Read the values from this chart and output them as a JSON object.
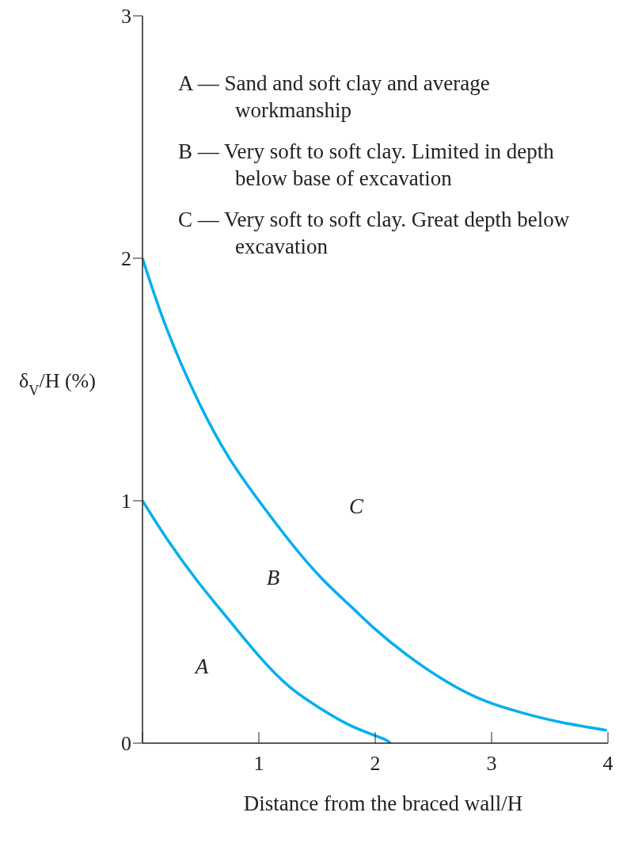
{
  "chart_data": {
    "type": "line",
    "xlabel": "Distance from the braced wall/H",
    "ylabel": "δ$_{V}$/H (%)",
    "xlim": [
      0,
      4
    ],
    "xticks": [
      {
        "value": 0,
        "label": null
      },
      1,
      2,
      3,
      4
    ],
    "ylim": [
      0,
      3
    ],
    "yticks": [
      0,
      1,
      2,
      3
    ],
    "grid": false,
    "marker": "none",
    "line_style": "solid",
    "series": [
      {
        "color": "#00aeef",
        "x": [
          0,
          0.2,
          0.47,
          0.74,
          1.0,
          1.27,
          1.54,
          1.8,
          2.06,
          2.13
        ],
        "values": [
          1.0,
          0.85,
          0.67,
          0.51,
          0.36,
          0.23,
          0.14,
          0.07,
          0.02,
          0
        ]
      },
      {
        "color": "#00aeef",
        "x": [
          0,
          0.2,
          0.47,
          0.74,
          1.0,
          1.27,
          1.54,
          1.8,
          2.0,
          2.27,
          2.61,
          2.94,
          3.28,
          3.61,
          3.99
        ],
        "values": [
          2.0,
          1.72,
          1.42,
          1.18,
          1.0,
          0.83,
          0.68,
          0.56,
          0.47,
          0.365,
          0.255,
          0.175,
          0.123,
          0.085,
          0.053
        ]
      }
    ],
    "annotations": [
      "A — Sand and soft clay and average workmanship",
      "B — Very soft to soft clay. Limited in depth below base of excavation",
      "C — Very soft to soft clay. Great depth below excavation",
      "A",
      "B",
      "C"
    ]
  }
}
